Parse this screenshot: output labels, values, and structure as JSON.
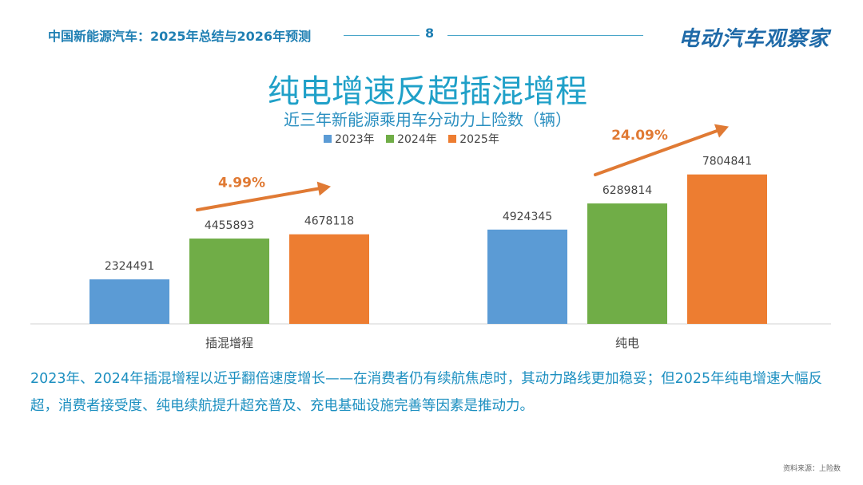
{
  "header": {
    "title": "中国新能源汽车：2025年总结与2026年预测",
    "page": "8",
    "logo": "电动汽车观察家"
  },
  "slide": {
    "title": "纯电增速反超插混增程",
    "subtitle": "近三年新能源乘用车分动力上险数（辆）",
    "description": "2023年、2024年插混增程以近乎翻倍速度增长——在消费者仍有续航焦虑时，其动力路线更加稳妥；但2025年纯电增速大幅反超，消费者接受度、纯电续航提升超充普及、充电基础设施完善等因素是推动力。",
    "source": "资料来源：上险数"
  },
  "colors": {
    "accent": "#1fa0c8",
    "s2023": "#5b9bd5",
    "s2024": "#70ad47",
    "s2025": "#ed7d31",
    "growth": "#e07a34"
  },
  "chart_data": {
    "type": "bar",
    "categories": [
      "插混增程",
      "纯电"
    ],
    "series": [
      {
        "name": "2023年",
        "values": [
          2324491,
          4924345
        ]
      },
      {
        "name": "2024年",
        "values": [
          4455893,
          6289814
        ]
      },
      {
        "name": "2025年",
        "values": [
          4678118,
          7804841
        ]
      }
    ],
    "growth_labels": [
      "4.99%",
      "24.09%"
    ],
    "ylim": [
      0,
      9000000
    ],
    "legend": "top",
    "grid": false,
    "data_labels": true
  }
}
